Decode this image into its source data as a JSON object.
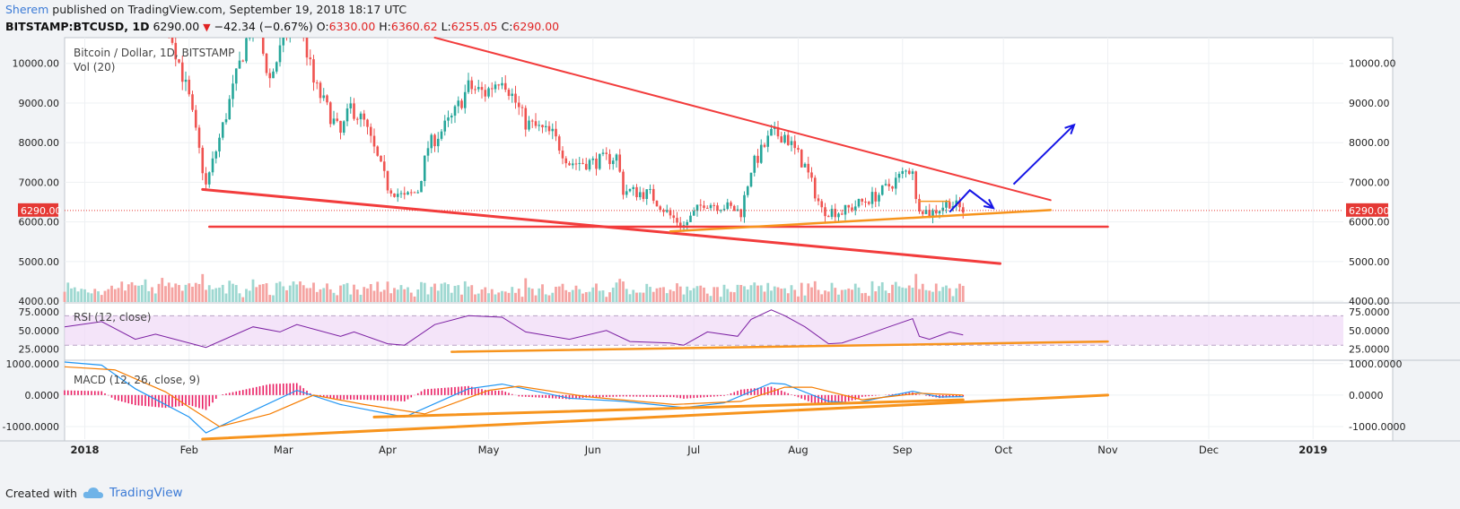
{
  "header": {
    "author": "Sherem",
    "published_text": "published on TradingView.com, September 19, 2018 18:17 UTC",
    "symbol": "BITSTAMP:BTCUSD, 1D",
    "last": "6290.00",
    "change": "−42.34 (−0.67%)",
    "o_label": "O:",
    "o_value": "6330.00",
    "h_label": "H:",
    "h_value": "6360.62",
    "l_label": "L:",
    "l_value": "6255.05",
    "c_label": "C:",
    "c_value": "6290.00",
    "down_arrow_icon": "triangle-down-icon"
  },
  "footer": {
    "created_with": "Created with",
    "brand": "TradingView",
    "logo_icon": "cloud-logo-icon"
  },
  "colors": {
    "up": "#26a69a",
    "down": "#ef5350",
    "vol_up": "#9ed8d1",
    "vol_down": "#f5a3a1",
    "trend_red": "#f23c3c",
    "trend_orange": "#f7941d",
    "arrow_blue": "#1515e6",
    "rsi": "#7b1fa2",
    "rsi_band": "#efd8f7",
    "macd": "#2196f3",
    "signal": "#f57c00",
    "hist": "#e91e63",
    "price_tag": "#e53935"
  },
  "chart_data": {
    "type": "candlestick",
    "title": "Bitcoin / Dollar, 1D, BITSTAMP",
    "volume_label": "Vol (20)",
    "x_start": "2017-12-26",
    "x_end": "2019-01-10",
    "price_ticks": [
      "10000.00",
      "9000.00",
      "8000.00",
      "7000.00",
      "6000.00",
      "5000.00",
      "4000.00"
    ],
    "price_ylim": [
      3980,
      10650
    ],
    "last_price_label": "6290.00",
    "last_price": 6290,
    "months": [
      {
        "label": "2018",
        "date": "2018-01-01",
        "bold": true
      },
      {
        "label": "Feb",
        "date": "2018-02-01"
      },
      {
        "label": "Mar",
        "date": "2018-03-01"
      },
      {
        "label": "Apr",
        "date": "2018-04-01"
      },
      {
        "label": "May",
        "date": "2018-05-01"
      },
      {
        "label": "Jun",
        "date": "2018-06-01"
      },
      {
        "label": "Jul",
        "date": "2018-07-01"
      },
      {
        "label": "Aug",
        "date": "2018-08-01"
      },
      {
        "label": "Sep",
        "date": "2018-09-01"
      },
      {
        "label": "Oct",
        "date": "2018-10-01"
      },
      {
        "label": "Nov",
        "date": "2018-11-01"
      },
      {
        "label": "Dec",
        "date": "2018-12-01"
      },
      {
        "label": "2019",
        "date": "2019-01-01",
        "bold": true
      }
    ],
    "candles_start": "2017-12-26",
    "candles_end": "2018-09-19",
    "close_path": [
      [
        "2017-12-26",
        15800
      ],
      [
        "2018-01-06",
        17100
      ],
      [
        "2018-01-16",
        11200
      ],
      [
        "2018-01-20",
        12800
      ],
      [
        "2018-02-01",
        9100
      ],
      [
        "2018-02-06",
        6900
      ],
      [
        "2018-02-10",
        8100
      ],
      [
        "2018-02-20",
        11200
      ],
      [
        "2018-02-25",
        9600
      ],
      [
        "2018-03-05",
        11500
      ],
      [
        "2018-03-10",
        9500
      ],
      [
        "2018-03-18",
        8200
      ],
      [
        "2018-03-21",
        8900
      ],
      [
        "2018-03-25",
        8500
      ],
      [
        "2018-04-01",
        6900
      ],
      [
        "2018-04-06",
        6600
      ],
      [
        "2018-04-10",
        6800
      ],
      [
        "2018-04-13",
        7900
      ],
      [
        "2018-04-20",
        8600
      ],
      [
        "2018-04-25",
        9400
      ],
      [
        "2018-04-30",
        9250
      ],
      [
        "2018-05-05",
        9700
      ],
      [
        "2018-05-12",
        8500
      ],
      [
        "2018-05-20",
        8200
      ],
      [
        "2018-05-25",
        7500
      ],
      [
        "2018-06-01",
        7500
      ],
      [
        "2018-06-08",
        7650
      ],
      [
        "2018-06-10",
        6800
      ],
      [
        "2018-06-18",
        6700
      ],
      [
        "2018-06-24",
        6150
      ],
      [
        "2018-06-28",
        5900
      ],
      [
        "2018-07-04",
        6500
      ],
      [
        "2018-07-10",
        6400
      ],
      [
        "2018-07-15",
        6250
      ],
      [
        "2018-07-18",
        7350
      ],
      [
        "2018-07-24",
        8200
      ],
      [
        "2018-07-28",
        8200
      ],
      [
        "2018-08-03",
        7400
      ],
      [
        "2018-08-08",
        6300
      ],
      [
        "2018-08-14",
        6250
      ],
      [
        "2018-08-20",
        6500
      ],
      [
        "2018-08-25",
        6700
      ],
      [
        "2018-09-01",
        7200
      ],
      [
        "2018-09-04",
        7380
      ],
      [
        "2018-09-05",
        6500
      ],
      [
        "2018-09-09",
        6200
      ],
      [
        "2018-09-15",
        6500
      ],
      [
        "2018-09-19",
        6290
      ]
    ],
    "rsi": {
      "label": "RSI (12, close)",
      "ticks": [
        "75.0000",
        "50.0000",
        "25.0000"
      ],
      "ylim": [
        12,
        85
      ],
      "band": [
        30,
        70
      ],
      "path": [
        [
          "2017-12-26",
          55
        ],
        [
          "2018-01-06",
          62
        ],
        [
          "2018-01-16",
          38
        ],
        [
          "2018-01-22",
          45
        ],
        [
          "2018-02-06",
          27
        ],
        [
          "2018-02-20",
          55
        ],
        [
          "2018-02-28",
          48
        ],
        [
          "2018-03-05",
          58
        ],
        [
          "2018-03-18",
          42
        ],
        [
          "2018-03-22",
          48
        ],
        [
          "2018-04-01",
          32
        ],
        [
          "2018-04-06",
          30
        ],
        [
          "2018-04-15",
          58
        ],
        [
          "2018-04-25",
          70
        ],
        [
          "2018-05-05",
          68
        ],
        [
          "2018-05-12",
          48
        ],
        [
          "2018-05-25",
          38
        ],
        [
          "2018-06-05",
          50
        ],
        [
          "2018-06-12",
          35
        ],
        [
          "2018-06-24",
          33
        ],
        [
          "2018-06-28",
          30
        ],
        [
          "2018-07-05",
          48
        ],
        [
          "2018-07-14",
          42
        ],
        [
          "2018-07-18",
          65
        ],
        [
          "2018-07-24",
          78
        ],
        [
          "2018-07-28",
          70
        ],
        [
          "2018-08-03",
          55
        ],
        [
          "2018-08-10",
          32
        ],
        [
          "2018-08-14",
          33
        ],
        [
          "2018-08-20",
          42
        ],
        [
          "2018-08-28",
          55
        ],
        [
          "2018-09-04",
          66
        ],
        [
          "2018-09-06",
          42
        ],
        [
          "2018-09-09",
          38
        ],
        [
          "2018-09-15",
          48
        ],
        [
          "2018-09-19",
          44
        ]
      ]
    },
    "macd": {
      "label": "MACD (12, 26, close, 9)",
      "ticks": [
        "1000.0000",
        "0.0000",
        "-1000.0000"
      ],
      "ylim": [
        -1400,
        1050
      ],
      "macd_path": [
        [
          "2017-12-26",
          1050
        ],
        [
          "2018-01-06",
          950
        ],
        [
          "2018-01-16",
          200
        ],
        [
          "2018-02-01",
          -700
        ],
        [
          "2018-02-06",
          -1200
        ],
        [
          "2018-02-20",
          -500
        ],
        [
          "2018-03-05",
          150
        ],
        [
          "2018-03-18",
          -300
        ],
        [
          "2018-04-06",
          -700
        ],
        [
          "2018-04-25",
          200
        ],
        [
          "2018-05-05",
          350
        ],
        [
          "2018-05-25",
          -100
        ],
        [
          "2018-06-10",
          -200
        ],
        [
          "2018-06-28",
          -400
        ],
        [
          "2018-07-10",
          -250
        ],
        [
          "2018-07-24",
          380
        ],
        [
          "2018-07-28",
          350
        ],
        [
          "2018-08-10",
          -200
        ],
        [
          "2018-08-18",
          -250
        ],
        [
          "2018-09-04",
          120
        ],
        [
          "2018-09-12",
          -60
        ],
        [
          "2018-09-19",
          -50
        ]
      ],
      "signal_path": [
        [
          "2017-12-26",
          900
        ],
        [
          "2018-01-10",
          800
        ],
        [
          "2018-01-25",
          100
        ],
        [
          "2018-02-10",
          -1000
        ],
        [
          "2018-02-25",
          -600
        ],
        [
          "2018-03-10",
          0
        ],
        [
          "2018-03-25",
          -300
        ],
        [
          "2018-04-12",
          -600
        ],
        [
          "2018-05-01",
          150
        ],
        [
          "2018-05-10",
          280
        ],
        [
          "2018-05-30",
          -50
        ],
        [
          "2018-06-25",
          -300
        ],
        [
          "2018-07-15",
          -200
        ],
        [
          "2018-07-28",
          250
        ],
        [
          "2018-08-05",
          250
        ],
        [
          "2018-08-20",
          -150
        ],
        [
          "2018-09-06",
          60
        ],
        [
          "2018-09-19",
          0
        ]
      ]
    },
    "annotations": [
      {
        "kind": "trendline",
        "color": "trend_red",
        "pane": "price",
        "width": 2,
        "from": [
          "2018-04-15",
          10650
        ],
        "to": [
          "2018-10-15",
          6550
        ]
      },
      {
        "kind": "trendline",
        "color": "trend_red",
        "pane": "price",
        "width": 3,
        "from": [
          "2018-02-05",
          6820
        ],
        "to": [
          "2018-09-30",
          4950
        ]
      },
      {
        "kind": "trendline",
        "color": "trend_red",
        "pane": "price",
        "width": 2.5,
        "from": [
          "2018-02-07",
          5880
        ],
        "to": [
          "2018-11-01",
          5880
        ]
      },
      {
        "kind": "trendline",
        "color": "trend_orange",
        "pane": "price",
        "width": 2.5,
        "from": [
          "2018-06-24",
          5760
        ],
        "to": [
          "2018-10-15",
          6300
        ]
      },
      {
        "kind": "trendline",
        "color": "trend_orange",
        "pane": "price",
        "width": 1.5,
        "from": [
          "2018-09-06",
          6520
        ],
        "to": [
          "2018-09-15",
          6520
        ]
      },
      {
        "kind": "trendline",
        "color": "trend_orange",
        "pane": "rsi",
        "width": 2.5,
        "from": [
          "2018-04-20",
          21
        ],
        "to": [
          "2018-11-01",
          35
        ]
      },
      {
        "kind": "trendline",
        "color": "trend_orange",
        "pane": "macd",
        "width": 3,
        "from": [
          "2018-02-05",
          -1400
        ],
        "to": [
          "2018-11-01",
          0
        ]
      },
      {
        "kind": "trendline",
        "color": "trend_orange",
        "pane": "macd",
        "width": 3,
        "from": [
          "2018-03-28",
          -700
        ],
        "to": [
          "2018-09-19",
          -150
        ]
      },
      {
        "kind": "arrow",
        "color": "arrow_blue",
        "pane": "price",
        "points": [
          [
            "2018-09-15",
            6250
          ],
          [
            "2018-09-21",
            6800
          ],
          [
            "2018-09-28",
            6350
          ]
        ]
      },
      {
        "kind": "arrow",
        "color": "arrow_blue",
        "pane": "price",
        "points": [
          [
            "2018-10-04",
            6950
          ],
          [
            "2018-10-22",
            8450
          ]
        ]
      }
    ]
  }
}
